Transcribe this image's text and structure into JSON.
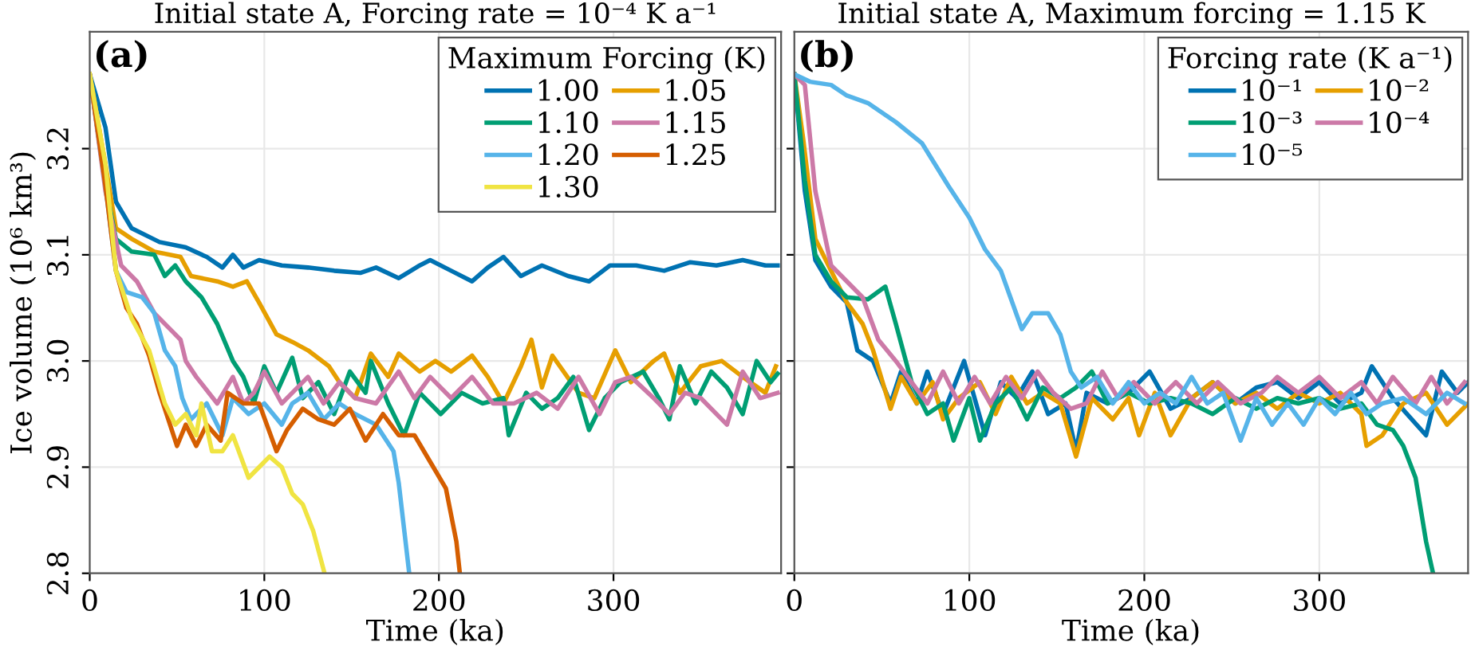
{
  "chart_data": [
    {
      "type": "line",
      "title": "Initial state A, Forcing rate = 10⁻⁴ K a⁻¹",
      "xlabel": "Time (ka)",
      "ylabel": "Ice volume (10⁶ km³)",
      "legend_title": "Maximum Forcing (K)",
      "annotations": [
        "(a)"
      ],
      "xlim": [
        0,
        396
      ],
      "ylim": [
        2.8,
        3.31
      ],
      "xticks": [
        0,
        100,
        200,
        300
      ],
      "yticks": [
        2.8,
        2.9,
        {
          "value": 3.0,
          "label": "3.0"
        },
        3.1,
        3.2
      ],
      "grid": true,
      "legend": "top right",
      "line_style": "solid",
      "marker": "none",
      "series": [
        {
          "name": "1.00",
          "color": "#0072b2",
          "x": [
            0,
            9,
            15,
            24,
            40,
            55,
            67,
            76,
            82,
            88,
            97,
            110,
            125,
            140,
            155,
            164,
            177,
            189,
            195,
            207,
            219,
            228,
            237,
            247,
            259,
            274,
            286,
            298,
            313,
            329,
            344,
            359,
            374,
            387,
            394
          ],
          "values": [
            3.27,
            3.22,
            3.15,
            3.125,
            3.112,
            3.107,
            3.098,
            3.088,
            3.1,
            3.088,
            3.095,
            3.09,
            3.088,
            3.085,
            3.083,
            3.088,
            3.078,
            3.09,
            3.095,
            3.085,
            3.075,
            3.088,
            3.098,
            3.08,
            3.09,
            3.08,
            3.075,
            3.09,
            3.09,
            3.085,
            3.093,
            3.09,
            3.095,
            3.09,
            3.09
          ]
        },
        {
          "name": "1.05",
          "color": "#e69f00",
          "x": [
            0,
            9,
            15,
            24,
            37,
            52,
            58,
            73,
            82,
            90,
            97,
            107,
            116,
            125,
            137,
            143,
            152,
            161,
            171,
            177,
            189,
            198,
            207,
            219,
            228,
            237,
            247,
            253,
            259,
            265,
            280,
            289,
            301,
            310,
            323,
            329,
            338,
            350,
            362,
            374,
            387,
            393
          ],
          "values": [
            3.27,
            3.185,
            3.125,
            3.115,
            3.103,
            3.098,
            3.08,
            3.075,
            3.07,
            3.075,
            3.055,
            3.025,
            3.018,
            3.01,
            2.995,
            2.98,
            2.965,
            3.007,
            2.985,
            3.007,
            2.99,
            3.0,
            2.99,
            3.005,
            2.985,
            2.96,
            2.995,
            3.02,
            2.975,
            3.005,
            2.97,
            2.965,
            3.01,
            2.98,
            3.0,
            3.007,
            2.97,
            2.995,
            3.0,
            2.985,
            2.97,
            2.995
          ]
        },
        {
          "name": "1.10",
          "color": "#009e73",
          "x": [
            0,
            9,
            15,
            24,
            37,
            43,
            49,
            55,
            64,
            73,
            82,
            88,
            94,
            100,
            107,
            116,
            122,
            131,
            140,
            149,
            158,
            161,
            171,
            180,
            189,
            201,
            213,
            225,
            237,
            240,
            250,
            259,
            268,
            277,
            286,
            295,
            304,
            317,
            326,
            332,
            338,
            347,
            356,
            365,
            374,
            382,
            390,
            394
          ],
          "values": [
            3.27,
            3.165,
            3.115,
            3.103,
            3.1,
            3.08,
            3.09,
            3.075,
            3.06,
            3.035,
            3.0,
            2.985,
            2.96,
            2.995,
            2.97,
            3.003,
            2.965,
            2.98,
            2.95,
            2.99,
            2.97,
            3.0,
            2.96,
            2.93,
            2.97,
            2.95,
            2.97,
            2.96,
            2.965,
            2.93,
            2.97,
            2.955,
            2.965,
            2.985,
            2.935,
            2.965,
            2.98,
            2.99,
            2.965,
            2.945,
            2.995,
            2.96,
            2.99,
            2.975,
            2.95,
            3.0,
            2.98,
            2.988
          ]
        },
        {
          "name": "1.15",
          "color": "#cc79a7",
          "x": [
            0,
            9,
            18,
            27,
            37,
            46,
            52,
            55,
            61,
            73,
            82,
            88,
            94,
            100,
            110,
            116,
            125,
            134,
            143,
            152,
            164,
            177,
            186,
            195,
            207,
            219,
            231,
            243,
            256,
            268,
            280,
            292,
            301,
            310,
            323,
            332,
            341,
            350,
            365,
            374,
            384,
            394
          ],
          "values": [
            3.27,
            3.16,
            3.09,
            3.075,
            3.045,
            3.03,
            3.02,
            3.0,
            2.985,
            2.96,
            2.985,
            2.96,
            2.97,
            2.99,
            2.96,
            2.97,
            2.985,
            2.96,
            2.98,
            2.965,
            2.96,
            2.99,
            2.965,
            2.985,
            2.965,
            2.985,
            2.96,
            2.96,
            2.97,
            2.955,
            2.985,
            2.95,
            2.98,
            2.985,
            2.965,
            2.95,
            2.97,
            2.965,
            2.94,
            2.99,
            2.965,
            2.97
          ]
        },
        {
          "name": "1.20",
          "color": "#56b4e9",
          "x": [
            0,
            9,
            15,
            21,
            30,
            37,
            43,
            49,
            53,
            58,
            61,
            67,
            76,
            82,
            91,
            100,
            110,
            116,
            125,
            134,
            143,
            152,
            164,
            174,
            177,
            183
          ],
          "values": [
            3.27,
            3.165,
            3.085,
            3.065,
            3.06,
            3.045,
            3.01,
            2.995,
            2.965,
            2.945,
            2.95,
            2.96,
            2.93,
            2.965,
            2.95,
            2.96,
            2.94,
            2.96,
            2.97,
            2.945,
            2.96,
            2.95,
            2.94,
            2.915,
            2.885,
            2.8
          ]
        },
        {
          "name": "1.25",
          "color": "#d55e00",
          "x": [
            0,
            9,
            15,
            21,
            27,
            34,
            40,
            46,
            50,
            55,
            61,
            67,
            75,
            79,
            88,
            97,
            107,
            113,
            122,
            131,
            140,
            149,
            158,
            168,
            177,
            186,
            195,
            204,
            210,
            212
          ],
          "values": [
            3.27,
            3.165,
            3.085,
            3.05,
            3.035,
            3.005,
            2.97,
            2.94,
            2.92,
            2.94,
            2.92,
            2.94,
            2.925,
            2.97,
            2.96,
            2.96,
            2.915,
            2.935,
            2.955,
            2.945,
            2.94,
            2.955,
            2.925,
            2.95,
            2.93,
            2.93,
            2.905,
            2.88,
            2.83,
            2.8
          ]
        },
        {
          "name": "1.30",
          "color": "#f0e442",
          "x": [
            0,
            9,
            15,
            24,
            34,
            43,
            49,
            55,
            61,
            64,
            70,
            76,
            82,
            91,
            97,
            103,
            110,
            116,
            122,
            128,
            134.5
          ],
          "values": [
            3.27,
            3.185,
            3.085,
            3.04,
            3.01,
            2.96,
            2.94,
            2.95,
            2.93,
            2.96,
            2.915,
            2.915,
            2.93,
            2.89,
            2.9,
            2.91,
            2.9,
            2.875,
            2.865,
            2.84,
            2.8
          ]
        }
      ]
    },
    {
      "type": "line",
      "title": "Initial state A, Maximum forcing = 1.15 K",
      "xlabel": "Time (ka)",
      "legend_title": "Forcing rate (K a⁻¹)",
      "annotations": [
        "(b)"
      ],
      "xlim": [
        0,
        385
      ],
      "ylim": [
        2.8,
        3.31
      ],
      "xticks": [
        0,
        100,
        200,
        300
      ],
      "yticks": [
        2.8,
        2.9,
        3.0,
        3.1,
        3.2
      ],
      "tick_labels": "x",
      "grid": true,
      "legend": "top right",
      "line_style": "solid",
      "marker": "none",
      "series": [
        {
          "name": "10⁻¹",
          "color": "#0072b2",
          "x": [
            0,
            6,
            12,
            21,
            30,
            36,
            45,
            55,
            61,
            70,
            76,
            85,
            97,
            109,
            118,
            127,
            136,
            145,
            155,
            161,
            167,
            179,
            191,
            203,
            215,
            227,
            239,
            252,
            264,
            276,
            288,
            300,
            312,
            324,
            330,
            342,
            361,
            370,
            379,
            385
          ],
          "values": [
            3.27,
            3.16,
            3.095,
            3.07,
            3.055,
            3.01,
            3.0,
            2.96,
            2.99,
            2.96,
            2.99,
            2.95,
            3.0,
            2.93,
            2.98,
            2.965,
            2.99,
            2.95,
            2.96,
            2.915,
            2.97,
            2.96,
            2.97,
            2.99,
            2.955,
            2.965,
            2.98,
            2.96,
            2.975,
            2.98,
            2.965,
            2.98,
            2.96,
            2.97,
            2.995,
            2.965,
            2.93,
            2.99,
            2.97,
            2.98
          ]
        },
        {
          "name": "10⁻²",
          "color": "#e69f00",
          "x": [
            0,
            5,
            12,
            24,
            30,
            39,
            45,
            55,
            61,
            70,
            79,
            85,
            94,
            106,
            115,
            124,
            133,
            142,
            152,
            161,
            170,
            182,
            191,
            197,
            206,
            215,
            227,
            239,
            252,
            264,
            276,
            288,
            300,
            312,
            324,
            327,
            336,
            348,
            361,
            373,
            385
          ],
          "values": [
            3.27,
            3.21,
            3.115,
            3.075,
            3.055,
            3.035,
            3.01,
            2.955,
            2.985,
            2.96,
            2.98,
            2.945,
            2.965,
            2.98,
            2.95,
            2.985,
            2.96,
            2.97,
            2.96,
            2.91,
            2.965,
            2.945,
            2.965,
            2.93,
            2.97,
            2.93,
            2.965,
            2.98,
            2.96,
            2.97,
            2.955,
            2.97,
            2.96,
            2.97,
            2.95,
            2.92,
            2.93,
            2.96,
            2.97,
            2.94,
            2.96
          ]
        },
        {
          "name": "10⁻³",
          "color": "#009e73",
          "x": [
            0,
            6,
            12,
            21,
            30,
            42,
            52,
            58,
            67,
            76,
            85,
            91,
            100,
            106,
            115,
            124,
            133,
            142,
            152,
            161,
            170,
            179,
            191,
            203,
            215,
            227,
            239,
            252,
            264,
            276,
            288,
            300,
            312,
            324,
            333,
            342,
            348,
            355,
            361,
            365
          ],
          "values": [
            3.27,
            3.17,
            3.1,
            3.075,
            3.06,
            3.058,
            3.07,
            3.035,
            2.98,
            2.95,
            2.96,
            2.925,
            2.965,
            2.925,
            2.96,
            2.975,
            2.945,
            2.975,
            2.965,
            2.975,
            2.99,
            2.96,
            2.97,
            2.96,
            2.965,
            2.96,
            2.95,
            2.965,
            2.955,
            2.965,
            2.96,
            2.965,
            2.955,
            2.96,
            2.94,
            2.935,
            2.92,
            2.89,
            2.83,
            2.8
          ]
        },
        {
          "name": "10⁻⁴",
          "color": "#cc79a7",
          "x": [
            0,
            6,
            12,
            21,
            30,
            39,
            48,
            58,
            67,
            76,
            85,
            94,
            103,
            112,
            121,
            130,
            139,
            148,
            158,
            167,
            176,
            185,
            194,
            206,
            218,
            230,
            242,
            255,
            267,
            276,
            288,
            300,
            312,
            324,
            333,
            342,
            355,
            364,
            373,
            383
          ],
          "values": [
            3.27,
            3.26,
            3.16,
            3.09,
            3.075,
            3.06,
            3.02,
            3.0,
            2.98,
            2.96,
            2.99,
            2.96,
            2.985,
            2.96,
            2.985,
            2.965,
            2.99,
            2.97,
            2.955,
            2.96,
            2.99,
            2.965,
            2.98,
            2.96,
            2.98,
            2.96,
            2.98,
            2.96,
            2.97,
            2.985,
            2.97,
            2.985,
            2.965,
            2.98,
            2.96,
            2.985,
            2.96,
            2.985,
            2.96,
            2.98
          ]
        },
        {
          "name": "10⁻⁵",
          "color": "#56b4e9",
          "x": [
            0,
            9,
            21,
            30,
            42,
            58,
            73,
            88,
            100,
            109,
            118,
            130,
            136,
            145,
            152,
            158,
            164,
            173,
            182,
            191,
            200,
            209,
            218,
            227,
            236,
            245,
            255,
            264,
            273,
            282,
            291,
            300,
            309,
            318,
            327,
            336,
            348,
            361,
            373,
            383
          ],
          "values": [
            3.27,
            3.263,
            3.26,
            3.25,
            3.243,
            3.225,
            3.205,
            3.165,
            3.135,
            3.105,
            3.085,
            3.03,
            3.045,
            3.045,
            3.025,
            2.99,
            2.975,
            2.985,
            2.96,
            2.98,
            2.96,
            2.97,
            2.96,
            2.985,
            2.96,
            2.97,
            2.925,
            2.965,
            2.94,
            2.96,
            2.94,
            2.965,
            2.95,
            2.97,
            2.95,
            2.96,
            2.965,
            2.95,
            2.97,
            2.96
          ]
        }
      ]
    }
  ]
}
